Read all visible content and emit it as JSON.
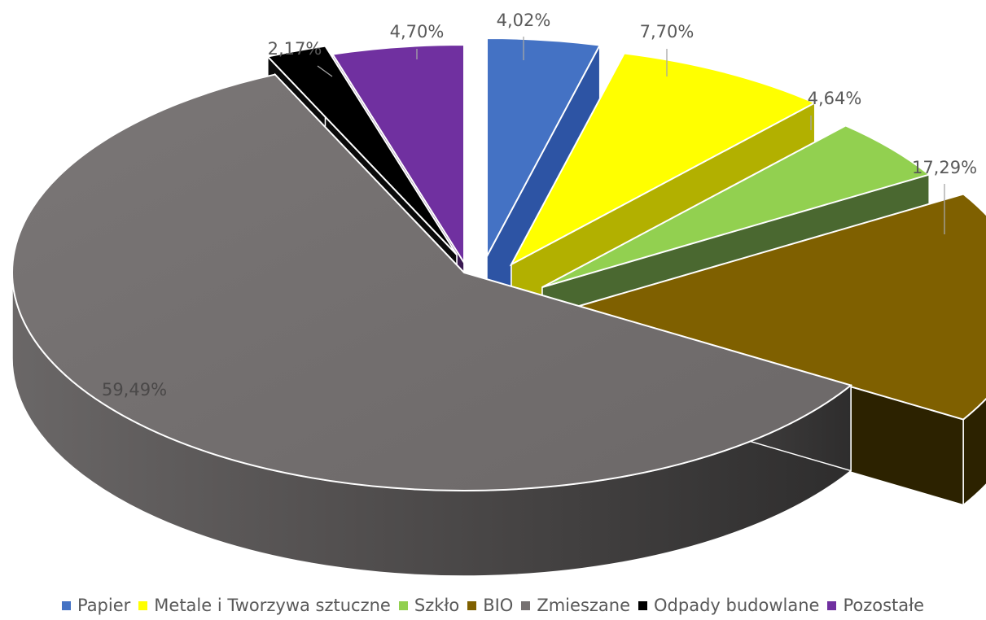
{
  "chart_data": {
    "type": "pie",
    "variant": "3d-exploded",
    "title": "",
    "legend_position": "bottom",
    "series": [
      {
        "category": "Papier",
        "value": 4.02,
        "label": "4,02%",
        "color": "#4472C4"
      },
      {
        "category": "Metale i Tworzywa sztuczne",
        "value": 7.7,
        "label": "7,70%",
        "color": "#FFFF00"
      },
      {
        "category": "Szkło",
        "value": 4.64,
        "label": "4,64%",
        "color": "#92D050"
      },
      {
        "category": "BIO",
        "value": 17.29,
        "label": "17,29%",
        "color": "#7F6000"
      },
      {
        "category": "Zmieszane",
        "value": 59.49,
        "label": "59,49%",
        "color": "#767171"
      },
      {
        "category": "Odpady budowlane",
        "value": 2.17,
        "label": "2,17%",
        "color": "#000000"
      },
      {
        "category": "Pozostałe",
        "value": 4.7,
        "label": "4,70%",
        "color": "#7030A0"
      }
    ]
  }
}
